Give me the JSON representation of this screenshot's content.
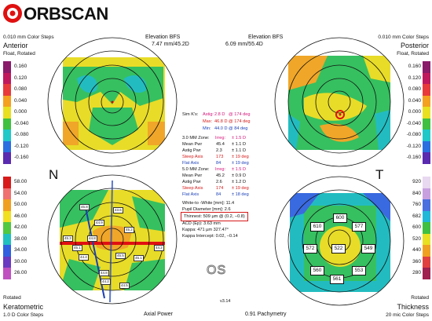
{
  "brand": {
    "logo_text": "ORBSCAN",
    "version": "v3.14"
  },
  "anterior": {
    "steps": "0.010 mm Color Steps",
    "title": "Anterior",
    "mode": "Float, Rotated",
    "scale": [
      "0.160",
      "0.120",
      "0.080",
      "0.040",
      "0.000",
      "-0.040",
      "-0.080",
      "-0.120",
      "-0.160"
    ]
  },
  "posterior": {
    "steps": "0.010 mm Color Steps",
    "title": "Posterior",
    "mode": "Float, Rotated",
    "scale": [
      "0.160",
      "0.120",
      "0.080",
      "0.040",
      "0.000",
      "-0.040",
      "-0.080",
      "-0.120",
      "-0.160"
    ]
  },
  "elev_left": {
    "title": "Elevation BFS",
    "value": "7.47 mm/45.2D"
  },
  "elev_right": {
    "title": "Elevation BFS",
    "value": "6.09 mm/55.4D"
  },
  "keratometric": {
    "scale": [
      "58.00",
      "54.00",
      "50.00",
      "46.00",
      "42.00",
      "38.00",
      "34.00",
      "30.00",
      "26.00"
    ],
    "label_n": "N",
    "bottom_mode": "Rotated",
    "title": "Keratometric",
    "steps": "1.0 D Color Steps",
    "bottom_title": "Axial Power"
  },
  "pachy": {
    "scale": [
      "920",
      "840",
      "760",
      "682",
      "600",
      "520",
      "440",
      "360",
      "280"
    ],
    "label_t": "T",
    "bottom_mode": "Rotated",
    "title": "Thickness",
    "steps": "20 mic Color Steps",
    "bottom_title": "0.91 Pachymetry",
    "values": [
      "600",
      "610",
      "577",
      "572",
      "522",
      "549",
      "560",
      "553",
      "561"
    ]
  },
  "eye": "OS",
  "simk": {
    "r1": [
      "Sim K's:",
      "Astig:",
      "2.8 D",
      "@ 174 deg"
    ],
    "r2": [
      "",
      "Max:",
      "46.8 D",
      "@ 174 deg"
    ],
    "r3": [
      "",
      "Min:",
      "44.0 D",
      "@ 84 deg"
    ]
  },
  "zone3": [
    [
      "3.0 MM Zone:",
      "Irreg:",
      "± 1.5 D"
    ],
    [
      "Mean Pwr",
      "45.4",
      "± 1.1 D"
    ],
    [
      "Astig Pwr",
      "2.3",
      "± 1.1 D"
    ],
    [
      "Steep Axis",
      "173",
      "± 19 deg"
    ],
    [
      "Flat Axis",
      "84",
      "± 19 deg"
    ]
  ],
  "zone5": [
    [
      "5.0 MM Zone:",
      "Irreg:",
      "± 1.5 D"
    ],
    [
      "Mean Pwr",
      "45.2",
      "± 0.9 D"
    ],
    [
      "Astig Pwr",
      "2.6",
      "± 1.2 D"
    ],
    [
      "Steep Axis",
      "174",
      "± 19 deg"
    ],
    [
      "Flat Axis",
      "84",
      "± 18 deg"
    ]
  ],
  "misc": {
    "wtw": "White-to -White [mm]: 11.4",
    "pupil": "Pupil Diameter [mm]: 2.6",
    "thinnest": "Thinnest: 509 µm @ (0.2, −0.8)",
    "acd": "ACD (Ep): 3.63 mm",
    "kappa": "Kappa: 471 µm 327.47°",
    "kappa_int": "Kappa Intercept: 0.02, −0.14"
  },
  "k_values": [
    "45.8",
    "43.6",
    "44.9",
    "45.2",
    "45.3",
    "44.8",
    "45.1",
    "44.2",
    "44.4",
    "45.1",
    "45.5",
    "44.8",
    "44.2",
    "44.5"
  ]
}
